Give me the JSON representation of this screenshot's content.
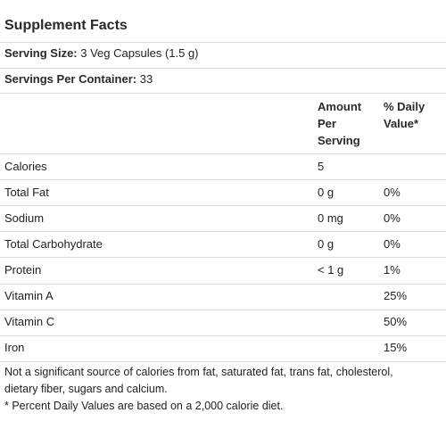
{
  "title": "Supplement Facts",
  "serving_size": {
    "label": "Serving Size:",
    "value": "3 Veg Capsules (1.5 g)"
  },
  "servings_per_container": {
    "label": "Servings Per Container:",
    "value": "33"
  },
  "columns": {
    "amount_line1": "Amount",
    "amount_line2": "Per",
    "amount_line3": "Serving",
    "dv_line1": "% Daily",
    "dv_line2": "Value*"
  },
  "rows": [
    {
      "name": "Calories",
      "amount": "5",
      "dv": ""
    },
    {
      "name": "Total Fat",
      "amount": "0 g",
      "dv": "0%"
    },
    {
      "name": "Sodium",
      "amount": "0 mg",
      "dv": "0%"
    },
    {
      "name": "Total Carbohydrate",
      "amount": "0 g",
      "dv": "0%"
    },
    {
      "name": "Protein",
      "amount": "< 1 g",
      "dv": "1%"
    },
    {
      "name": "Vitamin A",
      "amount": "",
      "dv": "25%"
    },
    {
      "name": "Vitamin C",
      "amount": "",
      "dv": "50%"
    },
    {
      "name": "Iron",
      "amount": "",
      "dv": "15%"
    }
  ],
  "footnote_line1": "Not a significant source of calories from fat, saturated fat, trans fat, cholesterol,",
  "footnote_line2": "dietary fiber, sugars and calcium.",
  "footnote_line3": "* Percent Daily Values are based on a 2,000 calorie diet."
}
